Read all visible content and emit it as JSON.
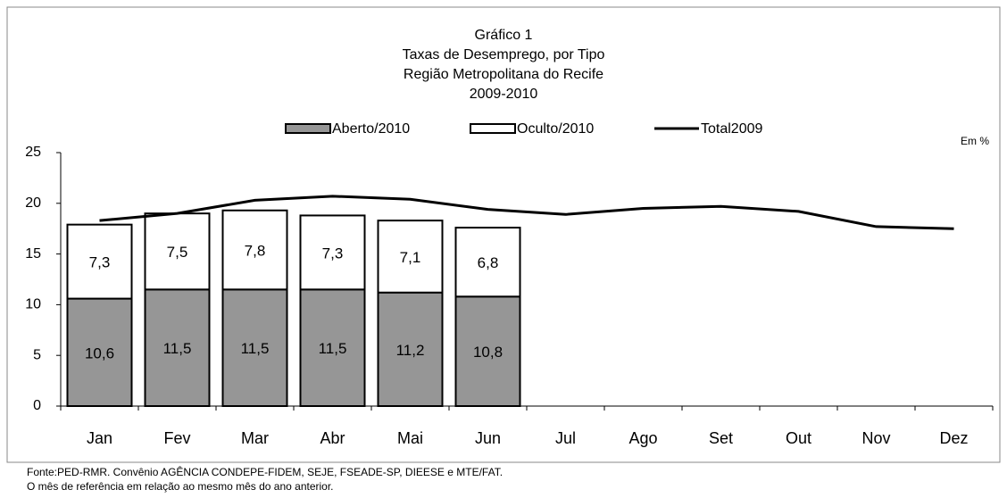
{
  "chart_data": {
    "type": "stacked-bar-line",
    "title": [
      "Gráfico 1",
      "Taxas de Desemprego, por Tipo",
      "Região Metropolitana do Recife",
      "2009-2010"
    ],
    "unit_note": "Em %",
    "categories": [
      "Jan",
      "Fev",
      "Mar",
      "Abr",
      "Mai",
      "Jun",
      "Jul",
      "Ago",
      "Set",
      "Out",
      "Nov",
      "Dez"
    ],
    "series": [
      {
        "name": "Aberto/2010",
        "color": "#969696",
        "kind": "bar",
        "values": [
          10.6,
          11.5,
          11.5,
          11.5,
          11.2,
          10.8,
          null,
          null,
          null,
          null,
          null,
          null
        ],
        "value_labels": [
          "10,6",
          "11,5",
          "11,5",
          "11,5",
          "11,2",
          "10,8",
          null,
          null,
          null,
          null,
          null,
          null
        ]
      },
      {
        "name": "Oculto/2010",
        "color": "#ffffff",
        "kind": "bar",
        "values": [
          7.3,
          7.5,
          7.8,
          7.3,
          7.1,
          6.8,
          null,
          null,
          null,
          null,
          null,
          null
        ],
        "value_labels": [
          "7,3",
          "7,5",
          "7,8",
          "7,3",
          "7,1",
          "6,8",
          null,
          null,
          null,
          null,
          null,
          null
        ]
      },
      {
        "name": "Total2009",
        "color": "#000000",
        "kind": "line",
        "values": [
          18.3,
          19.0,
          20.3,
          20.7,
          20.4,
          19.4,
          18.9,
          19.5,
          19.7,
          19.2,
          17.7,
          17.5
        ]
      }
    ],
    "ylim": [
      0,
      25
    ],
    "yticks": [
      0,
      5,
      10,
      15,
      20,
      25
    ],
    "grid": false,
    "notes": [
      "Fonte:PED-RMR. Convênio AGÊNCIA CONDEPE-FIDEM, SEJE, FSEADE-SP, DIEESE e MTE/FAT.",
      "O mês de referência em relação ao mesmo mês do ano anterior."
    ]
  }
}
